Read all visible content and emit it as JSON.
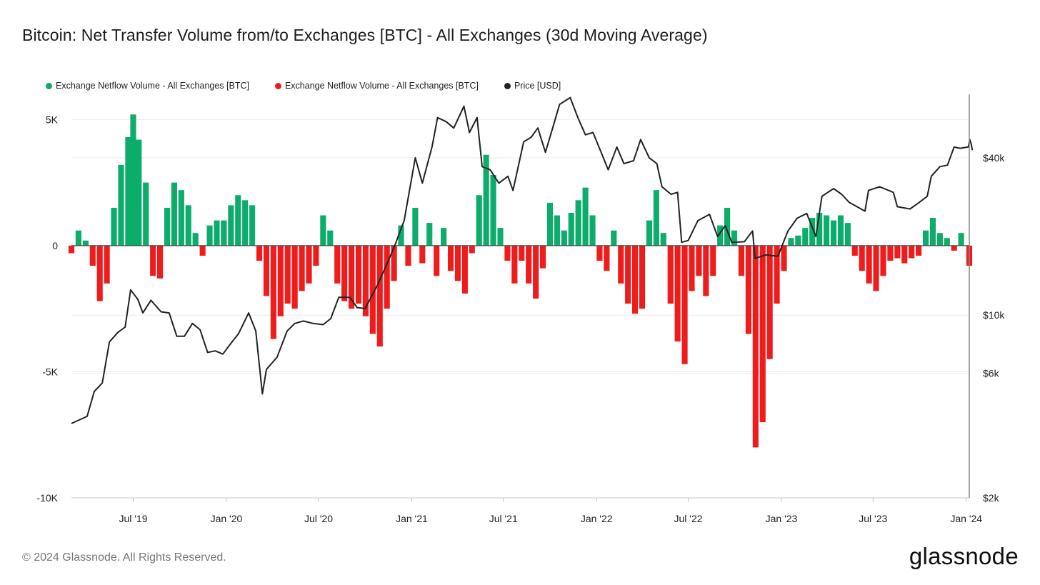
{
  "title": "Bitcoin: Net Transfer Volume from/to Exchanges [BTC] - All Exchanges (30d Moving Average)",
  "footer": "© 2024 Glassnode. All Rights Reserved.",
  "brand": "glassnode",
  "colors": {
    "positive": "#0cac6a",
    "negative": "#ee1c1c",
    "price": "#222222",
    "grid": "#ececec",
    "axis": "#c8c8c8"
  },
  "legend": [
    {
      "label": "Exchange Netflow Volume - All Exchanges [BTC]",
      "color": "#0cac6a"
    },
    {
      "label": "Exchange Netflow Volume - All Exchanges [BTC]",
      "color": "#ee1c1c"
    },
    {
      "label": "Price [USD]",
      "color": "#222222"
    }
  ],
  "chart_data": {
    "type": "bar",
    "x_range": [
      "2019-03-01",
      "2024-01-07"
    ],
    "y_left": {
      "range": [
        -10000,
        6000
      ],
      "ticks": [
        5000,
        0,
        -5000,
        -10000
      ],
      "tick_labels": [
        "5K",
        "0",
        "-5K",
        "-10K"
      ]
    },
    "y_right": {
      "scale": "log",
      "range": [
        2000,
        70000
      ],
      "ticks": [
        40000,
        10000,
        6000,
        2000
      ],
      "tick_labels": [
        "$40k",
        "$10k",
        "$6k",
        "$2k"
      ]
    },
    "x_ticks": [
      {
        "date": "2019-07-01",
        "label": "Jul '19"
      },
      {
        "date": "2020-01-01",
        "label": "Jan '20"
      },
      {
        "date": "2020-07-01",
        "label": "Jul '20"
      },
      {
        "date": "2021-01-01",
        "label": "Jan '21"
      },
      {
        "date": "2021-07-01",
        "label": "Jul '21"
      },
      {
        "date": "2022-01-01",
        "label": "Jan '22"
      },
      {
        "date": "2022-07-01",
        "label": "Jul '22"
      },
      {
        "date": "2023-01-01",
        "label": "Jan '23"
      },
      {
        "date": "2023-07-01",
        "label": "Jul '23"
      },
      {
        "date": "2024-01-01",
        "label": "Jan '24"
      }
    ],
    "series": [
      {
        "name": "Exchange Netflow Volume - All Exchanges [BTC]",
        "unit": "BTC",
        "points": [
          [
            "2019-03-01",
            -300
          ],
          [
            "2019-03-15",
            600
          ],
          [
            "2019-03-29",
            200
          ],
          [
            "2019-04-12",
            -800
          ],
          [
            "2019-04-26",
            -2200
          ],
          [
            "2019-05-10",
            -1500
          ],
          [
            "2019-05-24",
            1500
          ],
          [
            "2019-06-07",
            3200
          ],
          [
            "2019-06-21",
            4300
          ],
          [
            "2019-07-01",
            5200
          ],
          [
            "2019-07-12",
            4200
          ],
          [
            "2019-07-26",
            2500
          ],
          [
            "2019-08-09",
            -1200
          ],
          [
            "2019-08-23",
            -1300
          ],
          [
            "2019-09-06",
            1500
          ],
          [
            "2019-09-20",
            2500
          ],
          [
            "2019-10-04",
            2200
          ],
          [
            "2019-10-18",
            1600
          ],
          [
            "2019-11-01",
            500
          ],
          [
            "2019-11-15",
            -400
          ],
          [
            "2019-11-29",
            800
          ],
          [
            "2019-12-13",
            1000
          ],
          [
            "2019-12-27",
            1000
          ],
          [
            "2020-01-10",
            1600
          ],
          [
            "2020-01-24",
            2000
          ],
          [
            "2020-02-07",
            1800
          ],
          [
            "2020-02-21",
            1600
          ],
          [
            "2020-03-06",
            -600
          ],
          [
            "2020-03-20",
            -2000
          ],
          [
            "2020-04-03",
            -3700
          ],
          [
            "2020-04-17",
            -2800
          ],
          [
            "2020-05-01",
            -2300
          ],
          [
            "2020-05-15",
            -2500
          ],
          [
            "2020-05-29",
            -1800
          ],
          [
            "2020-06-12",
            -1500
          ],
          [
            "2020-06-26",
            -800
          ],
          [
            "2020-07-10",
            1200
          ],
          [
            "2020-07-24",
            600
          ],
          [
            "2020-08-07",
            -1500
          ],
          [
            "2020-08-21",
            -2200
          ],
          [
            "2020-09-04",
            -2500
          ],
          [
            "2020-09-18",
            -2300
          ],
          [
            "2020-10-02",
            -2800
          ],
          [
            "2020-10-16",
            -3500
          ],
          [
            "2020-10-30",
            -4000
          ],
          [
            "2020-11-13",
            -2500
          ],
          [
            "2020-11-27",
            -1400
          ],
          [
            "2020-12-11",
            800
          ],
          [
            "2020-12-25",
            -800
          ],
          [
            "2021-01-08",
            1500
          ],
          [
            "2021-01-22",
            -700
          ],
          [
            "2021-02-05",
            900
          ],
          [
            "2021-02-19",
            -1200
          ],
          [
            "2021-03-05",
            700
          ],
          [
            "2021-03-19",
            -1000
          ],
          [
            "2021-04-02",
            -1400
          ],
          [
            "2021-04-16",
            -1900
          ],
          [
            "2021-04-30",
            -300
          ],
          [
            "2021-05-14",
            2000
          ],
          [
            "2021-05-28",
            3600
          ],
          [
            "2021-06-11",
            2800
          ],
          [
            "2021-06-25",
            700
          ],
          [
            "2021-07-09",
            -600
          ],
          [
            "2021-07-23",
            -1500
          ],
          [
            "2021-08-06",
            -600
          ],
          [
            "2021-08-20",
            -1500
          ],
          [
            "2021-09-03",
            -2100
          ],
          [
            "2021-09-17",
            -900
          ],
          [
            "2021-10-01",
            1700
          ],
          [
            "2021-10-15",
            1200
          ],
          [
            "2021-10-29",
            600
          ],
          [
            "2021-11-12",
            1300
          ],
          [
            "2021-11-26",
            1800
          ],
          [
            "2021-12-10",
            2300
          ],
          [
            "2021-12-24",
            1200
          ],
          [
            "2022-01-07",
            -600
          ],
          [
            "2022-01-21",
            -1000
          ],
          [
            "2022-02-04",
            600
          ],
          [
            "2022-02-18",
            -1500
          ],
          [
            "2022-03-04",
            -2300
          ],
          [
            "2022-03-18",
            -2700
          ],
          [
            "2022-04-01",
            -2500
          ],
          [
            "2022-04-15",
            1000
          ],
          [
            "2022-04-29",
            2200
          ],
          [
            "2022-05-13",
            500
          ],
          [
            "2022-05-27",
            -2300
          ],
          [
            "2022-06-10",
            -3800
          ],
          [
            "2022-06-24",
            -4700
          ],
          [
            "2022-07-08",
            -1800
          ],
          [
            "2022-07-22",
            -1200
          ],
          [
            "2022-08-05",
            -2000
          ],
          [
            "2022-08-19",
            -1200
          ],
          [
            "2022-09-02",
            800
          ],
          [
            "2022-09-16",
            1500
          ],
          [
            "2022-09-30",
            600
          ],
          [
            "2022-10-14",
            -1200
          ],
          [
            "2022-10-28",
            -3500
          ],
          [
            "2022-11-11",
            -8000
          ],
          [
            "2022-11-25",
            -7000
          ],
          [
            "2022-12-09",
            -4500
          ],
          [
            "2022-12-23",
            -2300
          ],
          [
            "2023-01-06",
            -1000
          ],
          [
            "2023-01-20",
            300
          ],
          [
            "2023-02-03",
            400
          ],
          [
            "2023-02-17",
            700
          ],
          [
            "2023-03-03",
            1100
          ],
          [
            "2023-03-17",
            1300
          ],
          [
            "2023-03-31",
            1200
          ],
          [
            "2023-04-14",
            1000
          ],
          [
            "2023-04-28",
            1200
          ],
          [
            "2023-05-12",
            900
          ],
          [
            "2023-05-26",
            -400
          ],
          [
            "2023-06-09",
            -1000
          ],
          [
            "2023-06-23",
            -1500
          ],
          [
            "2023-07-07",
            -1800
          ],
          [
            "2023-07-21",
            -1200
          ],
          [
            "2023-08-04",
            -600
          ],
          [
            "2023-08-18",
            -500
          ],
          [
            "2023-09-01",
            -700
          ],
          [
            "2023-09-15",
            -500
          ],
          [
            "2023-09-29",
            -400
          ],
          [
            "2023-10-13",
            600
          ],
          [
            "2023-10-27",
            1100
          ],
          [
            "2023-11-10",
            500
          ],
          [
            "2023-11-24",
            300
          ],
          [
            "2023-12-08",
            -200
          ],
          [
            "2023-12-22",
            500
          ],
          [
            "2024-01-07",
            -800
          ]
        ]
      },
      {
        "name": "Price [USD]",
        "unit": "USD",
        "points": [
          [
            "2019-03-01",
            3850
          ],
          [
            "2019-04-01",
            4100
          ],
          [
            "2019-04-15",
            5100
          ],
          [
            "2019-05-01",
            5500
          ],
          [
            "2019-05-15",
            7900
          ],
          [
            "2019-06-01",
            8600
          ],
          [
            "2019-06-15",
            9000
          ],
          [
            "2019-06-26",
            12500
          ],
          [
            "2019-07-10",
            11500
          ],
          [
            "2019-07-20",
            10200
          ],
          [
            "2019-08-05",
            11400
          ],
          [
            "2019-08-25",
            10300
          ],
          [
            "2019-09-10",
            10200
          ],
          [
            "2019-09-25",
            8300
          ],
          [
            "2019-10-10",
            8300
          ],
          [
            "2019-10-26",
            9300
          ],
          [
            "2019-11-10",
            8800
          ],
          [
            "2019-11-25",
            7200
          ],
          [
            "2019-12-10",
            7300
          ],
          [
            "2019-12-25",
            7100
          ],
          [
            "2020-01-10",
            7800
          ],
          [
            "2020-01-25",
            8500
          ],
          [
            "2020-02-14",
            10200
          ],
          [
            "2020-02-28",
            8700
          ],
          [
            "2020-03-12",
            5000
          ],
          [
            "2020-03-20",
            6200
          ],
          [
            "2020-04-10",
            6900
          ],
          [
            "2020-04-30",
            8700
          ],
          [
            "2020-05-15",
            9300
          ],
          [
            "2020-06-01",
            9500
          ],
          [
            "2020-06-20",
            9300
          ],
          [
            "2020-07-10",
            9200
          ],
          [
            "2020-07-25",
            9700
          ],
          [
            "2020-08-10",
            11700
          ],
          [
            "2020-09-01",
            11700
          ],
          [
            "2020-09-15",
            10700
          ],
          [
            "2020-10-01",
            10600
          ],
          [
            "2020-10-25",
            13000
          ],
          [
            "2020-11-15",
            16000
          ],
          [
            "2020-12-01",
            19000
          ],
          [
            "2020-12-17",
            23000
          ],
          [
            "2021-01-08",
            40000
          ],
          [
            "2021-01-22",
            32000
          ],
          [
            "2021-02-10",
            44000
          ],
          [
            "2021-02-21",
            57000
          ],
          [
            "2021-03-10",
            55000
          ],
          [
            "2021-03-25",
            52000
          ],
          [
            "2021-04-14",
            63000
          ],
          [
            "2021-04-25",
            50000
          ],
          [
            "2021-05-10",
            57000
          ],
          [
            "2021-05-20",
            37000
          ],
          [
            "2021-06-05",
            36000
          ],
          [
            "2021-06-22",
            32000
          ],
          [
            "2021-07-10",
            34000
          ],
          [
            "2021-07-20",
            30000
          ],
          [
            "2021-08-10",
            46000
          ],
          [
            "2021-08-25",
            48000
          ],
          [
            "2021-09-07",
            52000
          ],
          [
            "2021-09-22",
            42000
          ],
          [
            "2021-10-05",
            51000
          ],
          [
            "2021-10-20",
            64000
          ],
          [
            "2021-11-10",
            68000
          ],
          [
            "2021-11-25",
            57000
          ],
          [
            "2021-12-10",
            49000
          ],
          [
            "2021-12-25",
            50000
          ],
          [
            "2022-01-10",
            42000
          ],
          [
            "2022-01-24",
            36000
          ],
          [
            "2022-02-10",
            44000
          ],
          [
            "2022-02-24",
            38000
          ],
          [
            "2022-03-15",
            39000
          ],
          [
            "2022-03-29",
            47000
          ],
          [
            "2022-04-15",
            40000
          ],
          [
            "2022-04-30",
            38000
          ],
          [
            "2022-05-10",
            31000
          ],
          [
            "2022-05-28",
            29000
          ],
          [
            "2022-06-10",
            29500
          ],
          [
            "2022-06-18",
            19000
          ],
          [
            "2022-07-01",
            19300
          ],
          [
            "2022-07-20",
            23000
          ],
          [
            "2022-08-12",
            24300
          ],
          [
            "2022-08-28",
            20000
          ],
          [
            "2022-09-12",
            22000
          ],
          [
            "2022-09-25",
            19000
          ],
          [
            "2022-10-20",
            19100
          ],
          [
            "2022-11-05",
            21000
          ],
          [
            "2022-11-10",
            16500
          ],
          [
            "2022-12-01",
            17000
          ],
          [
            "2022-12-25",
            16800
          ],
          [
            "2023-01-14",
            21000
          ],
          [
            "2023-02-01",
            23500
          ],
          [
            "2023-02-20",
            24500
          ],
          [
            "2023-03-10",
            20000
          ],
          [
            "2023-03-22",
            28500
          ],
          [
            "2023-04-14",
            30500
          ],
          [
            "2023-04-30",
            29000
          ],
          [
            "2023-05-15",
            27000
          ],
          [
            "2023-06-15",
            25000
          ],
          [
            "2023-06-22",
            30000
          ],
          [
            "2023-07-14",
            31000
          ],
          [
            "2023-08-10",
            29500
          ],
          [
            "2023-08-18",
            26000
          ],
          [
            "2023-09-12",
            25500
          ],
          [
            "2023-09-30",
            27000
          ],
          [
            "2023-10-16",
            28500
          ],
          [
            "2023-10-24",
            34000
          ],
          [
            "2023-11-10",
            37000
          ],
          [
            "2023-11-25",
            37500
          ],
          [
            "2023-12-08",
            44000
          ],
          [
            "2023-12-20",
            43500
          ],
          [
            "2024-01-05",
            44000
          ],
          [
            "2024-01-08",
            47000
          ],
          [
            "2024-01-11",
            45000
          ],
          [
            "2024-01-13",
            42800
          ]
        ]
      }
    ],
    "grid": true,
    "legend_position": "top-left"
  }
}
